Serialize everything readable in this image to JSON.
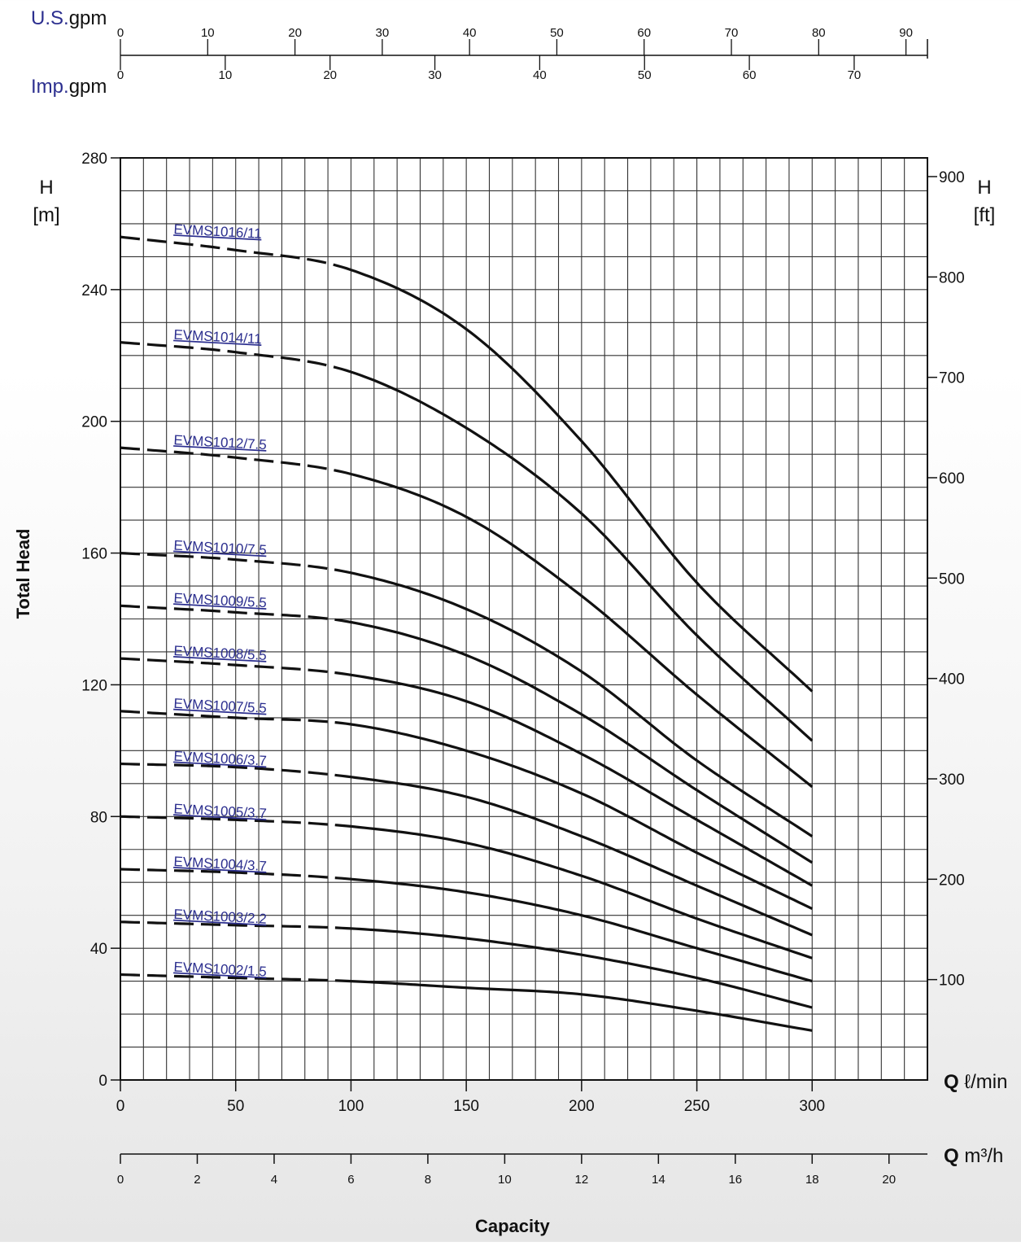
{
  "chart_data": {
    "type": "line",
    "xlabel": "Capacity",
    "ylabel": "Total Head",
    "x_unit": "Q ℓ/min",
    "x_ticks": [
      0,
      50,
      100,
      150,
      200,
      250,
      300
    ],
    "xlim": [
      0,
      350
    ],
    "y_unit_left": "H [m]",
    "y_unit_right": "H [ft]",
    "ylim": [
      0,
      280
    ],
    "y_ticks_left": [
      0,
      40,
      80,
      120,
      160,
      200,
      240,
      280
    ],
    "y_ticks_right": [
      100,
      200,
      300,
      400,
      500,
      600,
      700,
      800,
      900
    ],
    "grid": true,
    "secondary_axes": {
      "us_gpm": {
        "prefix": "U.S.",
        "suffix": "gpm",
        "ticks": [
          0,
          10,
          20,
          30,
          40,
          50,
          60,
          70,
          80,
          90
        ]
      },
      "imp_gpm": {
        "prefix": "Imp.",
        "suffix": "gpm",
        "ticks": [
          0,
          10,
          20,
          30,
          40,
          50,
          60,
          70
        ]
      },
      "m3h": {
        "label_q": "Q",
        "label_unit": "m³/h",
        "ticks": [
          0,
          2,
          4,
          6,
          8,
          10,
          12,
          14,
          16,
          18,
          20
        ]
      }
    },
    "dashed_until_x": 100,
    "series": [
      {
        "name": "EVMS1016/11",
        "x": [
          0,
          50,
          100,
          150,
          200,
          250,
          300
        ],
        "y": [
          256,
          252,
          246,
          228,
          194,
          151,
          118
        ]
      },
      {
        "name": "EVMS1014/11",
        "x": [
          0,
          50,
          100,
          150,
          200,
          250,
          300
        ],
        "y": [
          224,
          221,
          215,
          198,
          172,
          135,
          103
        ]
      },
      {
        "name": "EVMS1012/7.5",
        "x": [
          0,
          50,
          100,
          150,
          200,
          250,
          300
        ],
        "y": [
          192,
          189,
          184,
          171,
          147,
          117,
          89
        ]
      },
      {
        "name": "EVMS1010/7.5",
        "x": [
          0,
          50,
          100,
          150,
          200,
          250,
          300
        ],
        "y": [
          160,
          158,
          154,
          143,
          124,
          97,
          74
        ]
      },
      {
        "name": "EVMS1009/5.5",
        "x": [
          0,
          50,
          100,
          150,
          200,
          250,
          300
        ],
        "y": [
          144,
          142,
          139,
          129,
          111,
          88,
          66
        ]
      },
      {
        "name": "EVMS1008/5.5",
        "x": [
          0,
          50,
          100,
          150,
          200,
          250,
          300
        ],
        "y": [
          128,
          126,
          123,
          115,
          99,
          79,
          59
        ]
      },
      {
        "name": "EVMS1007/5.5",
        "x": [
          0,
          50,
          100,
          150,
          200,
          250,
          300
        ],
        "y": [
          112,
          110,
          108,
          100,
          87,
          69,
          52
        ]
      },
      {
        "name": "EVMS1006/3.7",
        "x": [
          0,
          50,
          100,
          150,
          200,
          250,
          300
        ],
        "y": [
          96,
          95,
          92,
          86,
          74,
          59,
          44
        ]
      },
      {
        "name": "EVMS1005/3.7",
        "x": [
          0,
          50,
          100,
          150,
          200,
          250,
          300
        ],
        "y": [
          80,
          79,
          77,
          72,
          62,
          49,
          37
        ]
      },
      {
        "name": "EVMS1004/3.7",
        "x": [
          0,
          50,
          100,
          150,
          200,
          250,
          300
        ],
        "y": [
          64,
          63,
          61,
          57,
          50,
          40,
          30
        ]
      },
      {
        "name": "EVMS1003/2.2",
        "x": [
          0,
          50,
          100,
          150,
          200,
          250,
          300
        ],
        "y": [
          48,
          47,
          46,
          43,
          38,
          31,
          22
        ]
      },
      {
        "name": "EVMS1002/1.5",
        "x": [
          0,
          50,
          100,
          150,
          200,
          250,
          300
        ],
        "y": [
          32,
          31,
          30,
          28,
          26,
          21,
          15
        ]
      }
    ]
  }
}
